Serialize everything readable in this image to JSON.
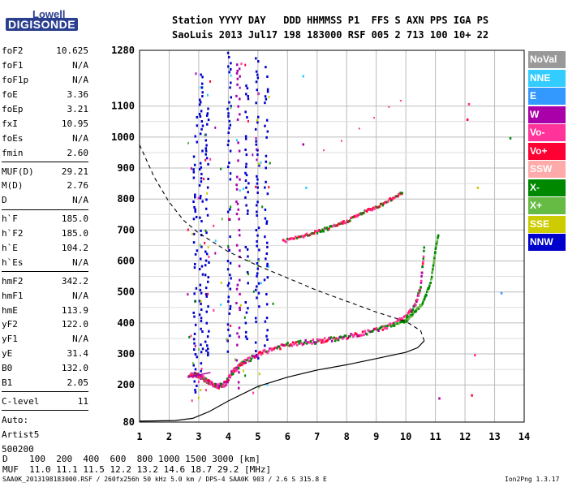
{
  "logo": {
    "line1": "Lowell",
    "line2": "DIGISONDE"
  },
  "header": {
    "labels": "Station YYYY DAY   DDD HHMMSS P1  FFS S AXN PPS IGA PS",
    "values": "SaoLuis 2013 Jul17 198 183000 RSF 005 2 713 100 10+ 22"
  },
  "params": [
    {
      "group": [
        {
          "name": "foF2",
          "value": "10.625"
        },
        {
          "name": "foF1",
          "value": "N/A"
        },
        {
          "name": "foF1p",
          "value": "N/A"
        },
        {
          "name": "foE",
          "value": "3.36"
        },
        {
          "name": "foEp",
          "value": "3.21"
        },
        {
          "name": "fxI",
          "value": "10.95"
        },
        {
          "name": "foEs",
          "value": "N/A"
        },
        {
          "name": "fmin",
          "value": "2.60"
        }
      ]
    },
    {
      "group": [
        {
          "name": "MUF(D)",
          "value": "29.21"
        },
        {
          "name": "M(D)",
          "value": "2.76"
        },
        {
          "name": "D",
          "value": "N/A"
        }
      ]
    },
    {
      "group": [
        {
          "name": "h`F",
          "value": "185.0"
        },
        {
          "name": "h`F2",
          "value": "185.0"
        },
        {
          "name": "h`E",
          "value": "104.2"
        },
        {
          "name": "h`Es",
          "value": "N/A"
        }
      ]
    },
    {
      "group": [
        {
          "name": "hmF2",
          "value": "342.2"
        },
        {
          "name": "hmF1",
          "value": "N/A"
        },
        {
          "name": "hmE",
          "value": "113.9"
        },
        {
          "name": "yF2",
          "value": "122.0"
        },
        {
          "name": "yF1",
          "value": "N/A"
        },
        {
          "name": "yE",
          "value": "31.4"
        },
        {
          "name": "B0",
          "value": "132.0"
        },
        {
          "name": "B1",
          "value": "2.05"
        }
      ]
    },
    {
      "group": [
        {
          "name": "C-level",
          "value": "11"
        }
      ]
    },
    {
      "group": [
        {
          "name": "Auto:",
          "value": ""
        },
        {
          "name": "Artist5",
          "value": ""
        },
        {
          "name": "500200",
          "value": ""
        }
      ]
    }
  ],
  "legend": [
    {
      "label": "NoVal",
      "color": "#999999"
    },
    {
      "label": "NNE",
      "color": "#33ccff"
    },
    {
      "label": "E",
      "color": "#3399ff"
    },
    {
      "label": "W",
      "color": "#aa00aa"
    },
    {
      "label": "Vo-",
      "color": "#ff3399"
    },
    {
      "label": "Vo+",
      "color": "#ff0033"
    },
    {
      "label": "SSW",
      "color": "#ffaaaa"
    },
    {
      "label": "X-",
      "color": "#008800"
    },
    {
      "label": "X+",
      "color": "#66bb44"
    },
    {
      "label": "SSE",
      "color": "#cccc00"
    },
    {
      "label": "NNW",
      "color": "#0000cc"
    }
  ],
  "bottom": {
    "d_row": "D    100  200  400  600  800 1000 1500 3000 [km]",
    "muf_row": "MUF  11.0 11.1 11.5 12.2 13.2 14.6 18.7 29.2 [MHz]"
  },
  "footer": {
    "left": "SAA0K_2013198183000.RSF / 260fx256h 50 kHz 5.0 km / DPS-4 SAA0K 903 / 2.6 S 315.8 E",
    "right": "Ion2Png 1.3.17"
  },
  "chart_data": {
    "type": "scatter",
    "xlim": [
      1,
      14
    ],
    "ylim": [
      80,
      1280
    ],
    "xticks": [
      "1",
      "2",
      "3",
      "4",
      "5",
      "6",
      "7",
      "8",
      "9",
      "10",
      "11",
      "12",
      "13",
      "14"
    ],
    "yticks": [
      "80",
      "200",
      "300",
      "400",
      "500",
      "600",
      "700",
      "800",
      "900",
      "1000",
      "1100",
      "1280"
    ],
    "grid": true,
    "o_trace": [
      [
        2.65,
        230
      ],
      [
        2.9,
        236
      ],
      [
        3.1,
        226
      ],
      [
        3.3,
        212
      ],
      [
        3.5,
        200
      ],
      [
        3.7,
        197
      ],
      [
        3.9,
        205
      ],
      [
        4.1,
        238
      ],
      [
        4.3,
        258
      ],
      [
        4.6,
        278
      ],
      [
        5.0,
        298
      ],
      [
        5.5,
        318
      ],
      [
        6.0,
        330
      ],
      [
        6.5,
        337
      ],
      [
        7.0,
        342
      ],
      [
        7.5,
        348
      ],
      [
        8.0,
        356
      ],
      [
        8.5,
        366
      ],
      [
        9.0,
        378
      ],
      [
        9.5,
        395
      ],
      [
        10.0,
        420
      ],
      [
        10.3,
        455
      ],
      [
        10.5,
        520
      ],
      [
        10.62,
        650
      ]
    ],
    "x_trace": [
      [
        9.5,
        390
      ],
      [
        10.0,
        410
      ],
      [
        10.3,
        435
      ],
      [
        10.6,
        470
      ],
      [
        10.85,
        540
      ],
      [
        11.0,
        640
      ],
      [
        11.1,
        690
      ]
    ],
    "f2_2hop": [
      [
        5.85,
        665
      ],
      [
        6.5,
        680
      ],
      [
        7.0,
        695
      ],
      [
        7.5,
        710
      ],
      [
        8.0,
        730
      ],
      [
        8.5,
        755
      ],
      [
        9.0,
        775
      ],
      [
        9.5,
        800
      ],
      [
        9.9,
        825
      ]
    ],
    "faint_echo": [
      [
        7.2,
        960
      ],
      [
        7.8,
        990
      ],
      [
        8.4,
        1030
      ],
      [
        8.9,
        1065
      ],
      [
        9.4,
        1100
      ],
      [
        9.8,
        1120
      ]
    ],
    "profile_solid": [
      [
        1.0,
        83
      ],
      [
        2.2,
        85
      ],
      [
        2.8,
        92
      ],
      [
        3.36,
        114
      ],
      [
        4.0,
        148
      ],
      [
        5.0,
        195
      ],
      [
        6.0,
        225
      ],
      [
        7.0,
        248
      ],
      [
        8.0,
        265
      ],
      [
        9.0,
        285
      ],
      [
        10.0,
        305
      ],
      [
        10.4,
        320
      ],
      [
        10.62,
        342.2
      ]
    ],
    "profile_dashed": [
      [
        1.0,
        975
      ],
      [
        1.5,
        870
      ],
      [
        2.0,
        790
      ],
      [
        2.5,
        730
      ],
      [
        3.0,
        690
      ],
      [
        4.0,
        630
      ],
      [
        5.0,
        585
      ],
      [
        6.0,
        545
      ],
      [
        7.0,
        505
      ],
      [
        8.0,
        470
      ],
      [
        9.0,
        435
      ],
      [
        10.0,
        405
      ],
      [
        10.5,
        375
      ],
      [
        10.62,
        342.2
      ]
    ],
    "vertical_bands": [
      {
        "x": 2.85,
        "y_from": 180,
        "y_to": 1080,
        "color": "#0000cc"
      },
      {
        "x": 3.05,
        "y_from": 220,
        "y_to": 1220,
        "color": "#0000cc"
      },
      {
        "x": 3.25,
        "y_from": 300,
        "y_to": 1100,
        "color": "#0000cc"
      },
      {
        "x": 4.0,
        "y_from": 220,
        "y_to": 1280,
        "color": "#0000cc"
      },
      {
        "x": 4.3,
        "y_from": 180,
        "y_to": 1280,
        "color": "#aa00aa"
      },
      {
        "x": 4.6,
        "y_from": 280,
        "y_to": 1180,
        "color": "#0000cc"
      },
      {
        "x": 4.95,
        "y_from": 290,
        "y_to": 1260,
        "color": "#0000cc"
      },
      {
        "x": 5.25,
        "y_from": 320,
        "y_to": 1240,
        "color": "#0000cc"
      }
    ]
  }
}
